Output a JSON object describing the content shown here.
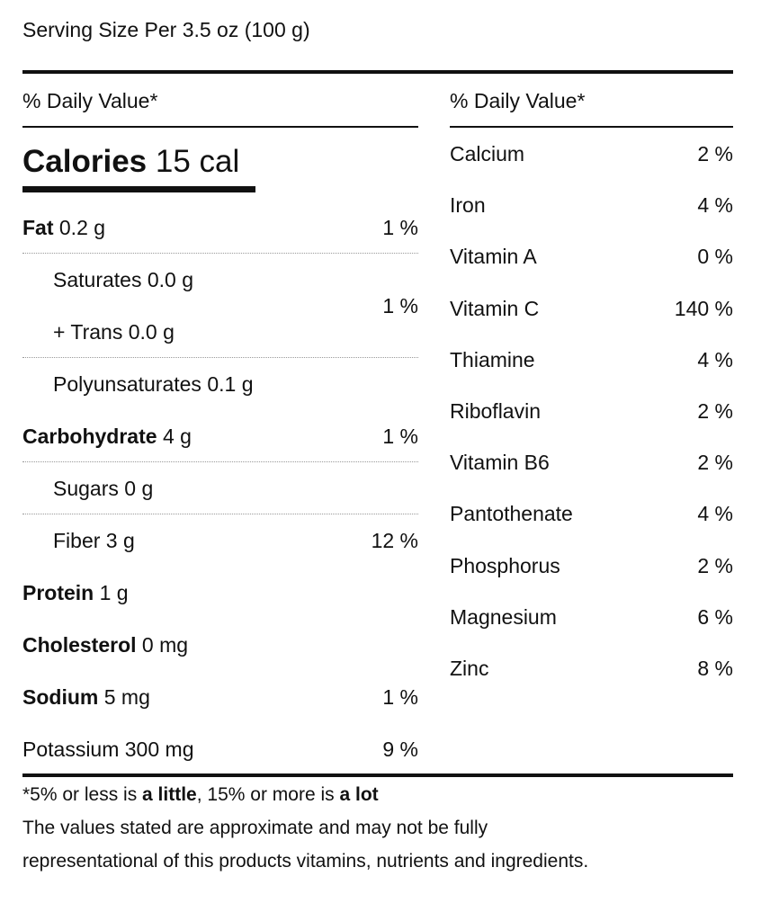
{
  "serving": "Serving Size Per 3.5 oz (100 g)",
  "left": {
    "header": "% Daily Value*",
    "calories": {
      "label": "Calories",
      "value": "15 cal"
    },
    "rows": [
      {
        "style": "bold",
        "lines": [
          {
            "name": "Fat",
            "amount": "0.2 g"
          }
        ],
        "dv": "1 %",
        "divider": true
      },
      {
        "style": "indent",
        "lines": [
          {
            "name": "Saturates",
            "amount": "0.0 g"
          },
          {
            "name": "+ Trans",
            "amount": "0.0 g"
          }
        ],
        "dv": "1 %",
        "divider": true
      },
      {
        "style": "indent",
        "lines": [
          {
            "name": "Polyunsaturates",
            "amount": "0.1 g"
          }
        ]
      },
      {
        "style": "bold",
        "lines": [
          {
            "name": "Carbohydrate",
            "amount": "4 g"
          }
        ],
        "dv": "1 %",
        "divider": true
      },
      {
        "style": "indent",
        "lines": [
          {
            "name": "Sugars",
            "amount": "0 g"
          }
        ],
        "divider": true
      },
      {
        "style": "indent",
        "lines": [
          {
            "name": "Fiber",
            "amount": "3 g"
          }
        ],
        "dv": "12 %"
      },
      {
        "style": "bold",
        "lines": [
          {
            "name": "Protein",
            "amount": "1 g"
          }
        ]
      },
      {
        "style": "bold",
        "lines": [
          {
            "name": "Cholesterol",
            "amount": "0 mg"
          }
        ]
      },
      {
        "style": "bold",
        "lines": [
          {
            "name": "Sodium",
            "amount": "5 mg"
          }
        ],
        "dv": "1 %"
      },
      {
        "style": "plain",
        "lines": [
          {
            "name": "Potassium",
            "amount": "300 mg"
          }
        ],
        "dv": "9 %"
      }
    ]
  },
  "right": {
    "header": "% Daily Value*",
    "rows": [
      {
        "name": "Calcium",
        "dv": "2 %"
      },
      {
        "name": "Iron",
        "dv": "4 %"
      },
      {
        "name": "Vitamin A",
        "dv": "0 %"
      },
      {
        "name": "Vitamin C",
        "dv": "140 %"
      },
      {
        "name": "Thiamine",
        "dv": "4 %"
      },
      {
        "name": "Riboflavin",
        "dv": "2 %"
      },
      {
        "name": "Vitamin B6",
        "dv": "2 %"
      },
      {
        "name": "Pantothenate",
        "dv": "4 %"
      },
      {
        "name": "Phosphorus",
        "dv": "2 %"
      },
      {
        "name": "Magnesium",
        "dv": "6 %"
      },
      {
        "name": "Zinc",
        "dv": "8 %"
      }
    ]
  },
  "footer": {
    "legend": [
      {
        "text": "*5% or less is ",
        "bold": false
      },
      {
        "text": "a little",
        "bold": true
      },
      {
        "text": ", 15% or more is ",
        "bold": false
      },
      {
        "text": "a lot",
        "bold": true
      }
    ],
    "note": [
      "The values stated are approximate and may not be fully",
      "representational of this products vitamins, nutrients and ingredients."
    ]
  }
}
